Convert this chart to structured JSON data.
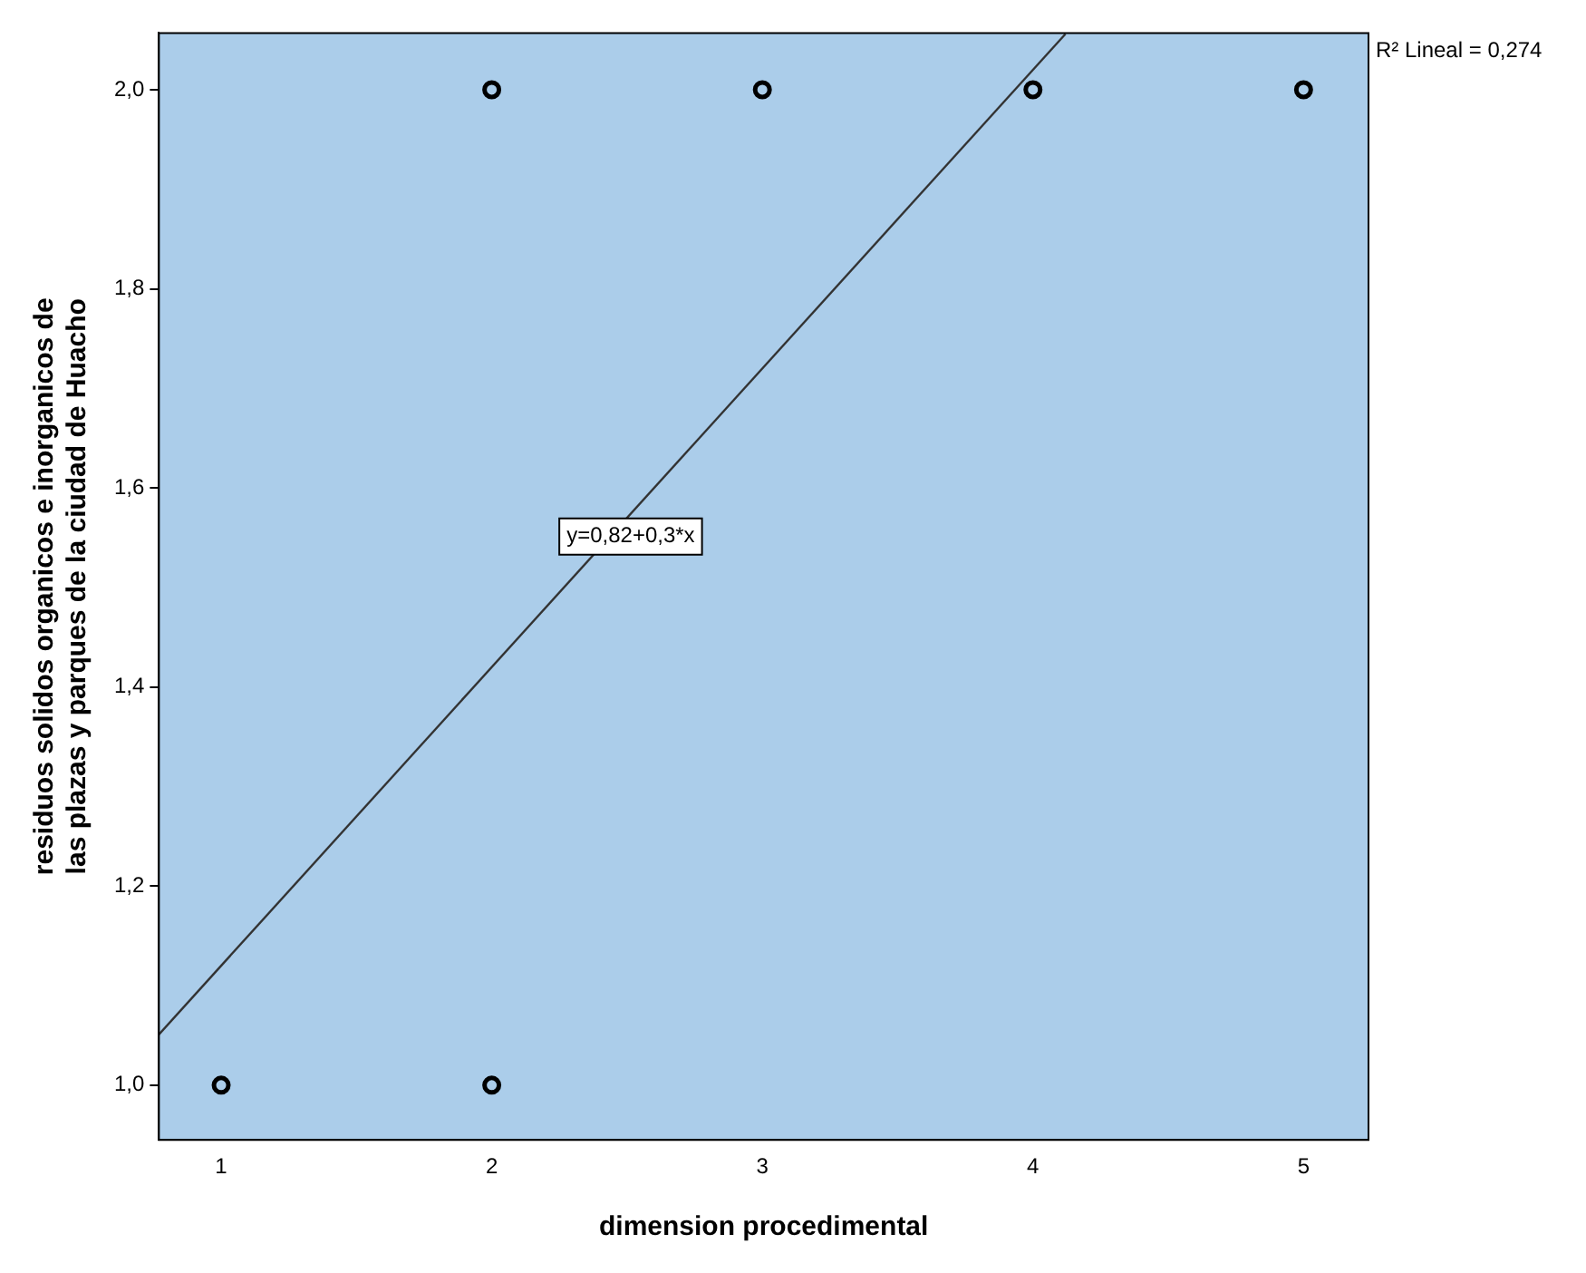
{
  "chart_data": {
    "type": "scatter",
    "xlabel": "dimension procedimental",
    "ylabel": "residuos solidos organicos e inorganicos de las plazas y parques de la ciudad de Huacho",
    "series": [
      {
        "color": "#000000",
        "marker": "circle",
        "x": [
          1,
          2,
          2,
          3,
          4,
          5
        ],
        "values": [
          1,
          1,
          2,
          2,
          2,
          2
        ]
      },
      {
        "type": "line",
        "color": "#333333",
        "marker": "none",
        "x": [
          0.77,
          4.12
        ],
        "values": [
          1.051,
          2.056
        ]
      }
    ],
    "xlim": [
      0.77,
      5.24
    ],
    "xticks": [
      1,
      2,
      3,
      4,
      5
    ],
    "ylim": [
      0.945,
      2.057
    ],
    "yticks": [
      {
        "value": 1,
        "label": "1,0"
      },
      {
        "value": 1.2,
        "label": "1,2"
      },
      {
        "value": 1.4,
        "label": "1,4"
      },
      {
        "value": 1.6,
        "label": "1,6"
      },
      {
        "value": 1.8,
        "label": "1,8"
      },
      {
        "value": 2,
        "label": "2,0"
      }
    ],
    "grid": false,
    "legend": false,
    "annotations": [
      "y=0,82+0,3*x",
      "R² Lineal = 0,274"
    ]
  }
}
